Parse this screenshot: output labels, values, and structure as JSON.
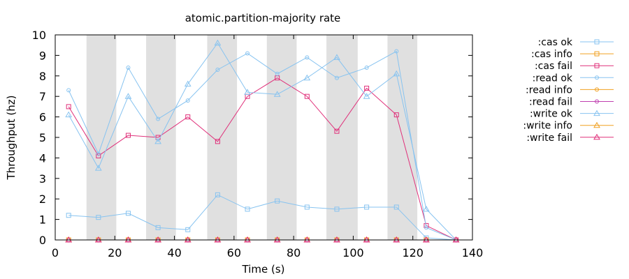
{
  "chart_data": {
    "type": "line",
    "title": "atomic.partition-majority rate",
    "xlabel": "Time (s)",
    "ylabel": "Throughput (hz)",
    "xlim": [
      0,
      140
    ],
    "ylim": [
      0,
      10
    ],
    "xticks": [
      0,
      20,
      40,
      60,
      80,
      100,
      120,
      140
    ],
    "yticks": [
      0,
      1,
      2,
      3,
      4,
      5,
      6,
      7,
      8,
      9,
      10
    ],
    "grid": false,
    "legend_position": "right",
    "nemesis_intervals": [
      [
        10.5,
        20.5
      ],
      [
        30.5,
        40.5
      ],
      [
        51,
        61
      ],
      [
        71,
        81
      ],
      [
        91,
        101.5
      ],
      [
        111.5,
        121.5
      ]
    ],
    "series": [
      {
        "name": ":cas ok",
        "color": "#87c3f0",
        "marker": "square",
        "x": [
          4.5,
          14.5,
          24.5,
          34.5,
          44.5,
          54.5,
          64.5,
          74.5,
          84.5,
          94.5,
          104.5,
          114.5,
          124.5,
          134.5
        ],
        "y": [
          1.2,
          1.1,
          1.3,
          0.6,
          0.5,
          2.2,
          1.5,
          1.9,
          1.6,
          1.5,
          1.6,
          1.6,
          0.1,
          0
        ]
      },
      {
        "name": ":cas info",
        "color": "#f0a020",
        "marker": "square",
        "x": [
          4.5,
          14.5,
          24.5,
          34.5,
          44.5,
          54.5,
          64.5,
          74.5,
          84.5,
          94.5,
          104.5,
          114.5,
          124.5,
          134.5
        ],
        "y": [
          0,
          0,
          0,
          0,
          0,
          0,
          0,
          0,
          0,
          0,
          0,
          0,
          0,
          0
        ]
      },
      {
        "name": ":cas fail",
        "color": "#e0307a",
        "marker": "square",
        "x": [
          4.5,
          14.5,
          24.5,
          34.5,
          44.5,
          54.5,
          64.5,
          74.5,
          84.5,
          94.5,
          104.5,
          114.5,
          124.5,
          134.5
        ],
        "y": [
          6.5,
          4.1,
          5.1,
          5.0,
          6.0,
          4.8,
          7.0,
          7.9,
          7.0,
          5.3,
          7.4,
          6.1,
          0.7,
          0
        ]
      },
      {
        "name": ":read ok",
        "color": "#87c3f0",
        "marker": "circle",
        "x": [
          4.5,
          14.5,
          24.5,
          34.5,
          44.5,
          54.5,
          64.5,
          74.5,
          84.5,
          94.5,
          104.5,
          114.5,
          124.5,
          134.5
        ],
        "y": [
          7.3,
          4.2,
          8.4,
          5.9,
          6.8,
          8.3,
          9.1,
          8.1,
          8.9,
          7.9,
          8.4,
          9.2,
          0.6,
          0
        ]
      },
      {
        "name": ":read info",
        "color": "#f0a020",
        "marker": "circle",
        "x": [
          4.5,
          14.5,
          24.5,
          34.5,
          44.5,
          54.5,
          64.5,
          74.5,
          84.5,
          94.5,
          104.5,
          114.5,
          124.5,
          134.5
        ],
        "y": [
          0,
          0,
          0,
          0,
          0,
          0,
          0,
          0,
          0,
          0,
          0,
          0,
          0,
          0
        ]
      },
      {
        "name": ":read fail",
        "color": "#c040b0",
        "marker": "circle",
        "x": [
          4.5,
          14.5,
          24.5,
          34.5,
          44.5,
          54.5,
          64.5,
          74.5,
          84.5,
          94.5,
          104.5,
          114.5,
          124.5,
          134.5
        ],
        "y": [
          0,
          0,
          0,
          0,
          0,
          0,
          0,
          0,
          0,
          0,
          0,
          0,
          0,
          0
        ]
      },
      {
        "name": ":write ok",
        "color": "#87c3f0",
        "marker": "triangle",
        "x": [
          4.5,
          14.5,
          24.5,
          34.5,
          44.5,
          54.5,
          64.5,
          74.5,
          84.5,
          94.5,
          104.5,
          114.5,
          124.5,
          134.5
        ],
        "y": [
          6.1,
          3.5,
          7.0,
          4.8,
          7.6,
          9.6,
          7.2,
          7.1,
          7.9,
          8.9,
          7.0,
          8.1,
          1.5,
          0
        ]
      },
      {
        "name": ":write info",
        "color": "#f0a020",
        "marker": "triangle",
        "x": [
          4.5,
          14.5,
          24.5,
          34.5,
          44.5,
          54.5,
          64.5,
          74.5,
          84.5,
          94.5,
          104.5,
          114.5,
          124.5,
          134.5
        ],
        "y": [
          0,
          0,
          0,
          0,
          0,
          0,
          0,
          0,
          0,
          0,
          0,
          0,
          0,
          0
        ]
      },
      {
        "name": ":write fail",
        "color": "#e0307a",
        "marker": "triangle",
        "x": [
          4.5,
          14.5,
          24.5,
          34.5,
          44.5,
          54.5,
          64.5,
          74.5,
          84.5,
          94.5,
          104.5,
          114.5,
          124.5,
          134.5
        ],
        "y": [
          0,
          0,
          0,
          0,
          0,
          0,
          0,
          0,
          0,
          0,
          0,
          0,
          0,
          0
        ]
      }
    ]
  }
}
